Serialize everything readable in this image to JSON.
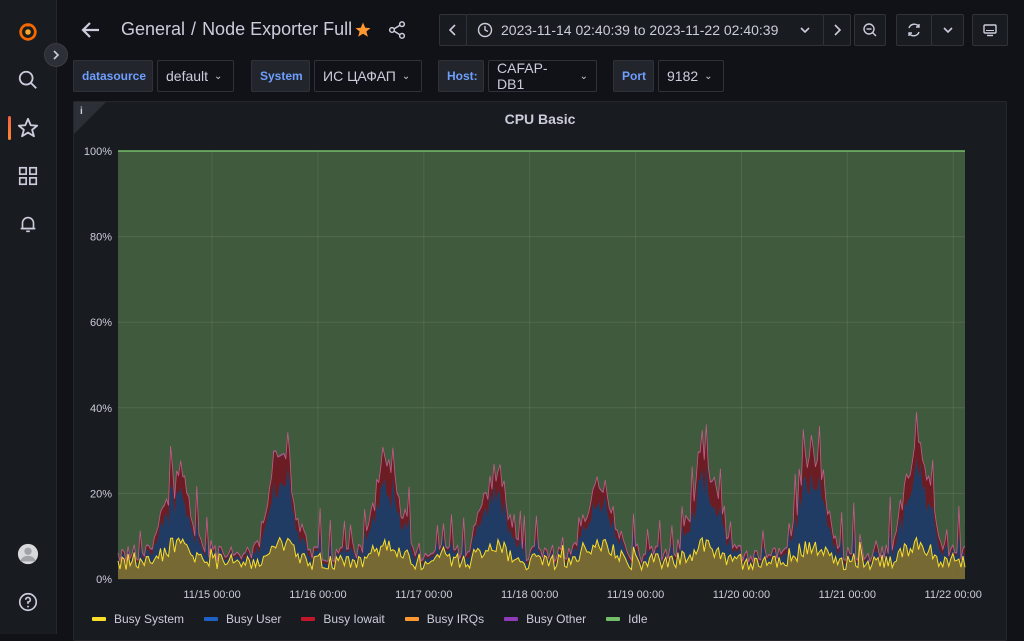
{
  "header": {
    "folder": "General",
    "separator": "/",
    "dashboard_title": "Node Exporter Full",
    "time_range": "2023-11-14 02:40:39 to 2023-11-22 02:40:39"
  },
  "sidebar": {
    "items": [
      {
        "name": "grafana-logo-icon"
      },
      {
        "name": "search-icon"
      },
      {
        "name": "starred-icon",
        "active": true
      },
      {
        "name": "dashboards-icon"
      },
      {
        "name": "alerting-icon"
      },
      {
        "name": "user-avatar-icon"
      },
      {
        "name": "help-icon"
      }
    ]
  },
  "variables": [
    {
      "label": "datasource",
      "value": "default"
    },
    {
      "label": "System",
      "value": "ИС ЦАФАП"
    },
    {
      "label": "Host:",
      "value": "CAFAP-DB1"
    },
    {
      "label": "Port",
      "value": "9182"
    }
  ],
  "panel": {
    "title": "CPU Basic",
    "info": "i"
  },
  "colors": {
    "busy_system": "#fade2a",
    "busy_user": "#1f60c4",
    "busy_iowait": "#c4162a",
    "busy_irqs": "#ff9830",
    "busy_other": "#8f3bb8",
    "idle": "#73bf69"
  },
  "chart_data": {
    "type": "area",
    "title": "CPU Basic",
    "y_ticks": [
      "100%",
      "80%",
      "60%",
      "40%",
      "20%",
      "0%"
    ],
    "x_ticks": [
      "11/15 00:00",
      "11/16 00:00",
      "11/17 00:00",
      "11/18 00:00",
      "11/19 00:00",
      "11/20 00:00",
      "11/21 00:00",
      "11/22 00:00"
    ],
    "ylim": [
      0,
      100
    ],
    "stacked": true,
    "legend_position": "bottom",
    "series": [
      {
        "name": "Busy System",
        "color": "#fade2a"
      },
      {
        "name": "Busy User",
        "color": "#1f60c4"
      },
      {
        "name": "Busy Iowait",
        "color": "#c4162a"
      },
      {
        "name": "Busy IRQs",
        "color": "#ff9830"
      },
      {
        "name": "Busy Other",
        "color": "#8f3bb8"
      },
      {
        "name": "Idle",
        "color": "#73bf69"
      }
    ],
    "daily_peak_total_busy_percent": [
      27,
      35,
      33,
      29,
      23,
      34,
      36,
      37,
      35
    ]
  }
}
